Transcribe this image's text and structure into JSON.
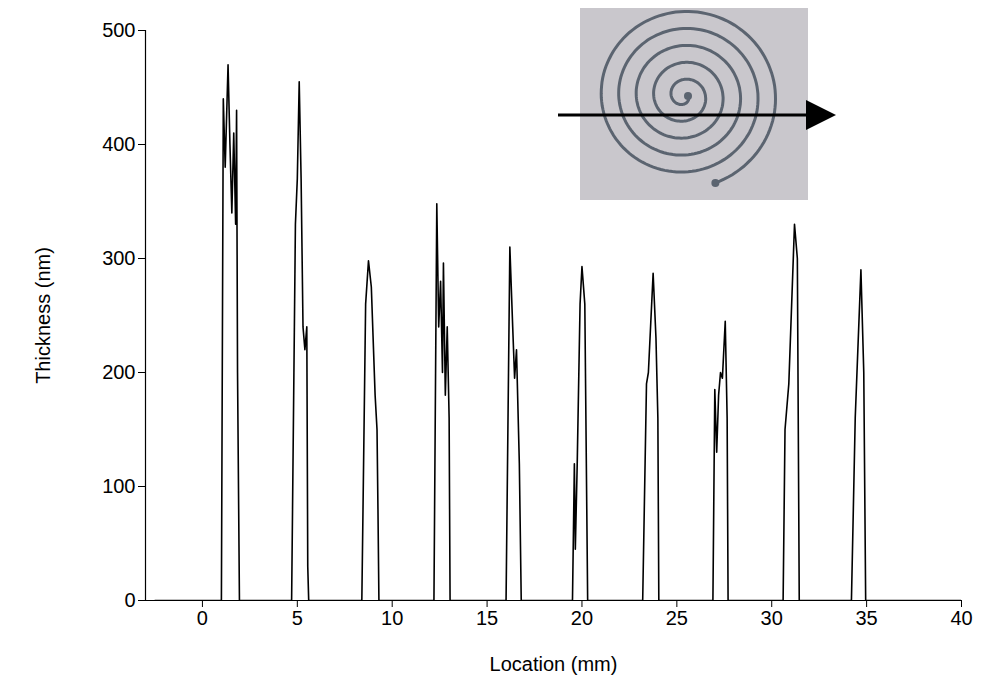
{
  "chart_data": {
    "type": "line",
    "x_label": "Location (mm)",
    "y_label": "Thickness (nm)",
    "color": "#000000",
    "xlim": [
      -3,
      40
    ],
    "ylim": [
      0,
      500
    ],
    "xticks": [
      0,
      5,
      10,
      15,
      20,
      25,
      30,
      35,
      40
    ],
    "yticks": [
      0,
      100,
      200,
      300,
      400,
      500
    ],
    "x": [
      -2.5,
      1.0,
      1.1,
      1.2,
      1.35,
      1.45,
      1.55,
      1.65,
      1.75,
      1.8,
      1.85,
      1.95,
      4.7,
      4.9,
      5.0,
      5.1,
      5.2,
      5.3,
      5.4,
      5.5,
      5.55,
      5.6,
      8.4,
      8.6,
      8.75,
      8.9,
      9.1,
      9.2,
      9.25,
      9.3,
      12.2,
      12.35,
      12.45,
      12.55,
      12.65,
      12.7,
      12.8,
      12.9,
      13.0,
      13.05,
      16.0,
      16.2,
      16.35,
      16.45,
      16.55,
      16.7,
      16.8,
      19.5,
      19.6,
      19.65,
      19.75,
      19.9,
      20.0,
      20.15,
      20.3,
      23.2,
      23.4,
      23.5,
      23.75,
      23.9,
      24.0,
      24.05,
      26.9,
      27.0,
      27.1,
      27.2,
      27.3,
      27.4,
      27.55,
      27.65,
      27.7,
      30.6,
      30.7,
      30.9,
      31.2,
      31.35,
      31.45,
      34.2,
      34.4,
      34.7,
      34.85,
      34.95,
      40
    ],
    "values": [
      0,
      0,
      440,
      380,
      470,
      400,
      340,
      410,
      330,
      430,
      200,
      0,
      0,
      330,
      370,
      455,
      370,
      240,
      220,
      240,
      30,
      0,
      0,
      260,
      298,
      275,
      180,
      150,
      80,
      0,
      0,
      348,
      240,
      280,
      200,
      296,
      180,
      240,
      160,
      0,
      0,
      310,
      240,
      195,
      220,
      120,
      0,
      0,
      120,
      45,
      120,
      260,
      293,
      260,
      0,
      0,
      190,
      200,
      287,
      230,
      160,
      0,
      0,
      185,
      130,
      180,
      200,
      195,
      245,
      160,
      0,
      0,
      150,
      190,
      330,
      300,
      0,
      0,
      160,
      290,
      200,
      0,
      0
    ]
  }
}
